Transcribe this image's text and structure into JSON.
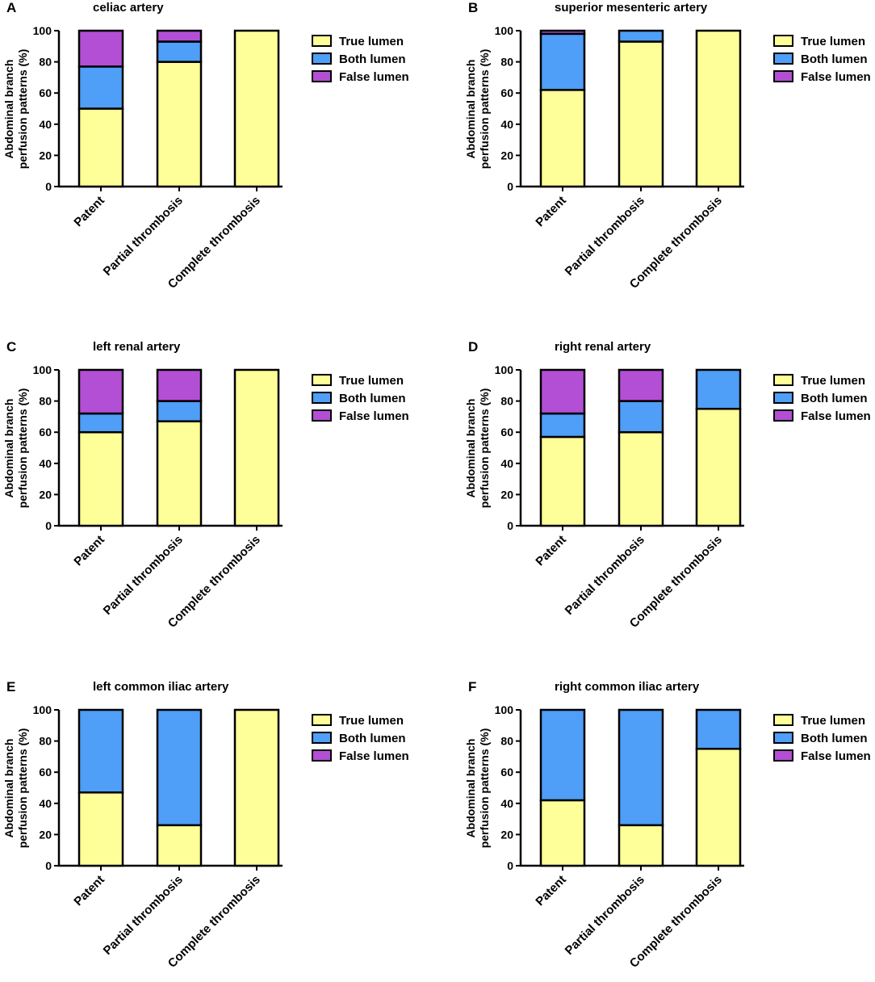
{
  "colors": {
    "true_lumen": "#ffff99",
    "both_lumen": "#4f9ef7",
    "false_lumen": "#b34fd4",
    "stroke": "#000000"
  },
  "shared": {
    "ylabel_line1": "Abdominal branch",
    "ylabel_line2": "perfusion patterns (%)",
    "yticks": [
      "0",
      "20",
      "40",
      "60",
      "80",
      "100"
    ],
    "categories": [
      "Patent",
      "Partial thrombosis",
      "Complete thrombosis"
    ],
    "legend": [
      "True lumen",
      "Both lumen",
      "False lumen"
    ]
  },
  "panels": [
    {
      "letter": "A",
      "title": "celiac artery"
    },
    {
      "letter": "B",
      "title": "superior mesenteric artery"
    },
    {
      "letter": "C",
      "title": "left renal artery"
    },
    {
      "letter": "D",
      "title": "right renal artery"
    },
    {
      "letter": "E",
      "title": "left common iliac artery"
    },
    {
      "letter": "F",
      "title": "right common iliac artery"
    }
  ],
  "chart_data": [
    {
      "type": "bar",
      "stacked": true,
      "title": "celiac artery",
      "ylabel": "Abdominal branch perfusion patterns (%)",
      "ylim": [
        0,
        100
      ],
      "categories": [
        "Patent",
        "Partial thrombosis",
        "Complete thrombosis"
      ],
      "series": [
        {
          "name": "True lumen",
          "values": [
            50,
            80,
            100
          ]
        },
        {
          "name": "Both lumen",
          "values": [
            27,
            13,
            0
          ]
        },
        {
          "name": "False lumen",
          "values": [
            23,
            7,
            0
          ]
        }
      ]
    },
    {
      "type": "bar",
      "stacked": true,
      "title": "superior mesenteric artery",
      "ylabel": "Abdominal branch perfusion patterns (%)",
      "ylim": [
        0,
        100
      ],
      "categories": [
        "Patent",
        "Partial thrombosis",
        "Complete thrombosis"
      ],
      "series": [
        {
          "name": "True lumen",
          "values": [
            62,
            93,
            100
          ]
        },
        {
          "name": "Both lumen",
          "values": [
            36,
            7,
            0
          ]
        },
        {
          "name": "False lumen",
          "values": [
            2,
            0,
            0
          ]
        }
      ]
    },
    {
      "type": "bar",
      "stacked": true,
      "title": "left renal artery",
      "ylabel": "Abdominal branch perfusion patterns (%)",
      "ylim": [
        0,
        100
      ],
      "categories": [
        "Patent",
        "Partial thrombosis",
        "Complete thrombosis"
      ],
      "series": [
        {
          "name": "True lumen",
          "values": [
            60,
            67,
            100
          ]
        },
        {
          "name": "Both lumen",
          "values": [
            12,
            13,
            0
          ]
        },
        {
          "name": "False lumen",
          "values": [
            28,
            20,
            0
          ]
        }
      ]
    },
    {
      "type": "bar",
      "stacked": true,
      "title": "right renal artery",
      "ylabel": "Abdominal branch perfusion patterns (%)",
      "ylim": [
        0,
        100
      ],
      "categories": [
        "Patent",
        "Partial thrombosis",
        "Complete thrombosis"
      ],
      "series": [
        {
          "name": "True lumen",
          "values": [
            57,
            60,
            75
          ]
        },
        {
          "name": "Both lumen",
          "values": [
            15,
            20,
            25
          ]
        },
        {
          "name": "False lumen",
          "values": [
            28,
            20,
            0
          ]
        }
      ]
    },
    {
      "type": "bar",
      "stacked": true,
      "title": "left common iliac artery",
      "ylabel": "Abdominal branch perfusion patterns (%)",
      "ylim": [
        0,
        100
      ],
      "categories": [
        "Patent",
        "Partial thrombosis",
        "Complete thrombosis"
      ],
      "series": [
        {
          "name": "True lumen",
          "values": [
            47,
            26,
            100
          ]
        },
        {
          "name": "Both lumen",
          "values": [
            53,
            74,
            0
          ]
        },
        {
          "name": "False lumen",
          "values": [
            0,
            0,
            0
          ]
        }
      ]
    },
    {
      "type": "bar",
      "stacked": true,
      "title": "right common iliac artery",
      "ylabel": "Abdominal branch perfusion patterns (%)",
      "ylim": [
        0,
        100
      ],
      "categories": [
        "Patent",
        "Partial thrombosis",
        "Complete thrombosis"
      ],
      "series": [
        {
          "name": "True lumen",
          "values": [
            42,
            26,
            75
          ]
        },
        {
          "name": "Both lumen",
          "values": [
            58,
            74,
            25
          ]
        },
        {
          "name": "False lumen",
          "values": [
            0,
            0,
            0
          ]
        }
      ]
    }
  ]
}
